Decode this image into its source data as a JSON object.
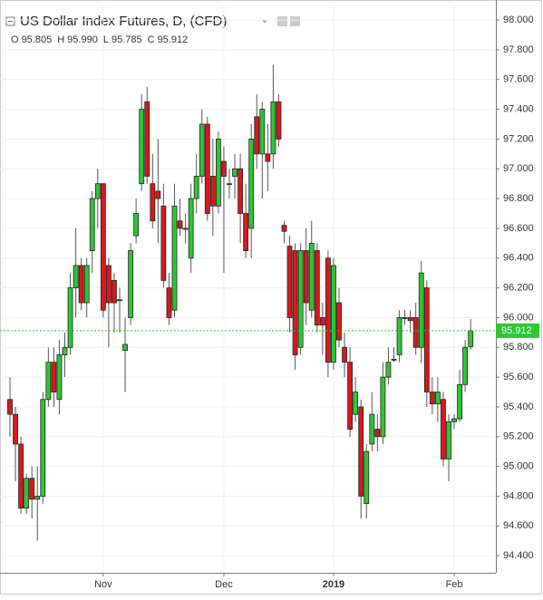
{
  "chart_data": {
    "type": "candlestick",
    "title": "US Dollar Index Futures, D, (CFD)",
    "ohlc_legend": [
      {
        "label": "O",
        "value": "95.805"
      },
      {
        "label": "H",
        "value": "95.990"
      },
      {
        "label": "L",
        "value": "95.785"
      },
      {
        "label": "C",
        "value": "95.912"
      }
    ],
    "categories": [
      null,
      null,
      null,
      null,
      null,
      null,
      null,
      null,
      null,
      null,
      null,
      null,
      null,
      null,
      null,
      null,
      null,
      "Nov",
      null,
      null,
      null,
      null,
      null,
      null,
      null,
      null,
      null,
      null,
      null,
      null,
      null,
      null,
      null,
      null,
      null,
      null,
      null,
      null,
      null,
      "Dec",
      null,
      null,
      null,
      null,
      null,
      null,
      null,
      null,
      null,
      null,
      null,
      null,
      null,
      null,
      null,
      null,
      null,
      null,
      null,
      "2019",
      null,
      null,
      null,
      null,
      null,
      null,
      null,
      null,
      null,
      null,
      null,
      null,
      null,
      null,
      null,
      null,
      null,
      null,
      null,
      null,
      null,
      "Feb",
      null,
      null,
      null
    ],
    "open": [
      95.45,
      95.35,
      95.15,
      94.72,
      94.92,
      94.78,
      94.8,
      95.45,
      95.7,
      95.45,
      95.75,
      95.8,
      96.2,
      96.35,
      96.1,
      96.45,
      96.8,
      96.9,
      96.35,
      96.25,
      96.12,
      95.78,
      96.0,
      96.55,
      96.9,
      97.45,
      96.9,
      96.85,
      96.75,
      96.2,
      96.05,
      96.65,
      96.6,
      96.4,
      96.8,
      96.95,
      97.3,
      96.95,
      96.75,
      97.05,
      96.9,
      96.95,
      97.0,
      96.7,
      96.6,
      97.35,
      97.1,
      97.1,
      97.1,
      97.45,
      96.62,
      96.48,
      96.45,
      95.8,
      96.45,
      96.05,
      96.45,
      96.0,
      96.4,
      95.7,
      96.1,
      95.8,
      95.7,
      95.35,
      95.4,
      94.75,
      95.15,
      95.25,
      95.2,
      95.6,
      95.72,
      95.75,
      96.0,
      96.0,
      96.0,
      95.8,
      96.2,
      95.5,
      95.42,
      95.45,
      95.05,
      95.3,
      95.32,
      95.55,
      95.805
    ],
    "high": [
      95.6,
      95.4,
      95.2,
      94.95,
      95.0,
      95.0,
      95.5,
      95.8,
      95.8,
      95.85,
      95.9,
      96.3,
      96.6,
      96.4,
      96.4,
      96.85,
      97.0,
      96.9,
      96.4,
      96.3,
      96.2,
      96.0,
      96.5,
      96.8,
      97.5,
      97.55,
      97.1,
      97.2,
      96.9,
      96.3,
      96.9,
      96.8,
      96.7,
      96.9,
      97.1,
      97.4,
      97.35,
      97.2,
      97.25,
      97.15,
      97.0,
      97.1,
      97.1,
      96.9,
      97.3,
      97.5,
      97.45,
      97.3,
      97.7,
      97.5,
      96.65,
      96.55,
      96.5,
      96.5,
      96.6,
      96.65,
      96.5,
      96.1,
      96.45,
      96.4,
      96.2,
      95.9,
      95.8,
      95.6,
      95.45,
      95.15,
      95.5,
      95.35,
      95.7,
      95.8,
      95.8,
      96.05,
      96.05,
      96.05,
      96.1,
      96.38,
      96.25,
      95.6,
      95.6,
      95.5,
      95.35,
      95.35,
      95.65,
      95.85,
      95.99
    ],
    "low": [
      95.2,
      94.9,
      94.68,
      94.68,
      94.65,
      94.5,
      94.75,
      95.4,
      95.4,
      95.35,
      95.6,
      95.75,
      96.0,
      96.05,
      96.0,
      96.3,
      96.6,
      96.0,
      95.8,
      95.9,
      95.9,
      95.5,
      95.95,
      96.5,
      96.85,
      96.9,
      96.6,
      96.5,
      96.2,
      95.95,
      96.0,
      96.55,
      96.5,
      96.3,
      96.7,
      96.9,
      96.65,
      96.55,
      96.7,
      96.3,
      96.8,
      96.8,
      96.5,
      96.4,
      96.4,
      97.0,
      96.8,
      96.85,
      97.0,
      97.15,
      96.5,
      95.9,
      95.65,
      95.75,
      95.95,
      96.0,
      95.9,
      95.75,
      95.6,
      95.65,
      95.8,
      95.6,
      95.2,
      95.3,
      94.65,
      94.65,
      95.1,
      95.1,
      95.15,
      95.55,
      95.7,
      95.7,
      95.95,
      95.9,
      95.75,
      95.7,
      95.4,
      95.35,
      95.3,
      95.0,
      94.9,
      95.25,
      95.3,
      95.5,
      95.785
    ],
    "close": [
      95.35,
      95.15,
      94.72,
      94.92,
      94.78,
      94.8,
      95.45,
      95.7,
      95.5,
      95.75,
      95.8,
      96.2,
      96.35,
      96.1,
      96.35,
      96.8,
      96.9,
      96.05,
      96.1,
      96.1,
      96.12,
      95.82,
      96.45,
      96.7,
      97.4,
      96.95,
      96.65,
      96.8,
      96.25,
      96.0,
      96.75,
      96.6,
      96.6,
      96.8,
      96.95,
      97.3,
      96.7,
      96.75,
      97.2,
      96.95,
      96.9,
      97.0,
      96.7,
      96.45,
      97.2,
      97.1,
      97.4,
      97.05,
      97.45,
      97.2,
      96.58,
      96.0,
      95.75,
      96.45,
      96.1,
      96.5,
      95.95,
      95.95,
      95.7,
      96.35,
      95.85,
      95.7,
      95.25,
      95.5,
      94.8,
      95.1,
      95.35,
      95.2,
      95.6,
      95.7,
      95.72,
      96.0,
      96.0,
      95.98,
      95.8,
      96.3,
      95.5,
      95.42,
      95.5,
      95.05,
      95.3,
      95.32,
      95.55,
      95.8,
      95.912
    ],
    "up_color": "#2fc634",
    "down_color": "#d9191c",
    "last_price": {
      "value": 95.912,
      "label": "95.912"
    },
    "ylim": [
      94.285,
      98.104
    ],
    "yticks": [
      {
        "value": 94.4,
        "label": "94.400"
      },
      {
        "value": 94.6,
        "label": "94.600"
      },
      {
        "value": 94.8,
        "label": "94.800"
      },
      {
        "value": 95,
        "label": "95.000"
      },
      {
        "value": 95.2,
        "label": "95.200"
      },
      {
        "value": 95.4,
        "label": "95.400"
      },
      {
        "value": 95.6,
        "label": "95.600"
      },
      {
        "value": 95.8,
        "label": "95.800"
      },
      {
        "value": 96,
        "label": "96.000"
      },
      {
        "value": 96.2,
        "label": "96.200"
      },
      {
        "value": 96.4,
        "label": "96.400"
      },
      {
        "value": 96.6,
        "label": "96.600"
      },
      {
        "value": 96.8,
        "label": "96.800"
      },
      {
        "value": 97,
        "label": "97.000"
      },
      {
        "value": 97.2,
        "label": "97.200"
      },
      {
        "value": 97.4,
        "label": "97.400"
      },
      {
        "value": 97.6,
        "label": "97.600"
      },
      {
        "value": 97.8,
        "label": "97.800"
      },
      {
        "value": 98,
        "label": "98.000"
      }
    ],
    "grid": true
  }
}
